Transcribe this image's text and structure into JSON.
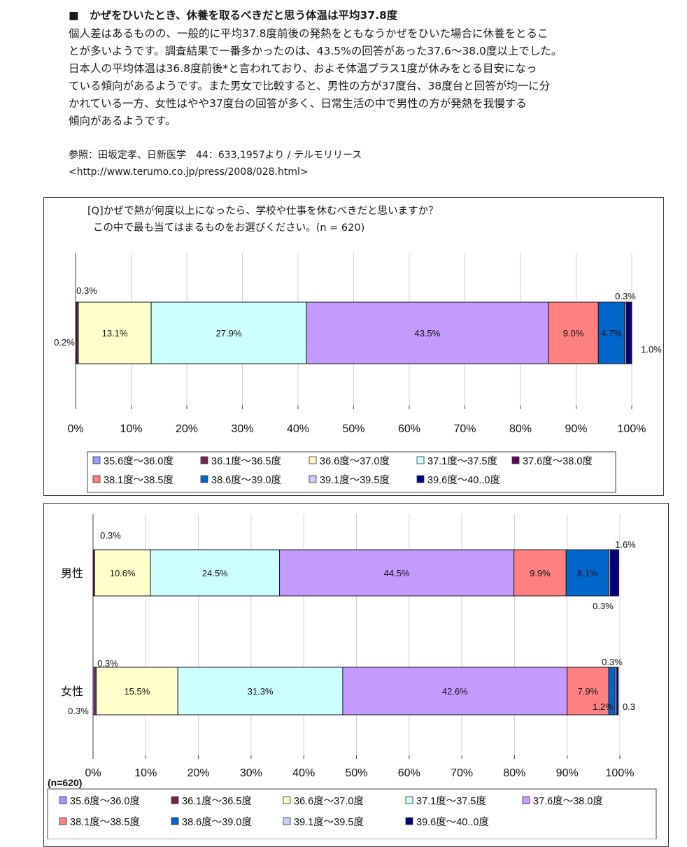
{
  "article": {
    "heading": "■　かぜをひいたとき、休養を取るべきだと思う体温は平均37.8度",
    "paragraph_lines": [
      "個人差はあるものの、一般的に平均37.8度前後の発熱をともなうかぜをひいた場合に休養をとるこ",
      "とが多いようです。調査結果で一番多かったのは、43.5%の回答があった37.6〜38.0度以上でした。",
      "日本人の平均体温は36.8度前後*と言われており、およそ体温プラス1度が休みをとる目安になっ",
      "ている傾向があるようです。また男女で比較すると、男性の方が37度台、38度台と回答が均一に分",
      "かれている一方、女性はやや37度台の回答が多く、日常生活の中で男性の方が発熱を我慢する",
      "傾向があるようです。"
    ],
    "reference_line1": "参照：田坂定孝、日新医学　44：633,1957より / テルモリリース",
    "reference_line2": "<http://www.terumo.co.jp/press/2008/028.html>"
  },
  "chart_data": [
    {
      "type": "bar",
      "orientation": "horizontal-stacked-100",
      "question_line1": "[Q]かぜで熱が何度以上になったら、学校や仕事を休むべきだと思いますか？",
      "question_line2": "この中で最も当てはまるものをお選びください。(n = 620)",
      "xlim": [
        0,
        100
      ],
      "x_ticks": [
        "0%",
        "10%",
        "20%",
        "30%",
        "40%",
        "50%",
        "60%",
        "70%",
        "80%",
        "90%",
        "100%"
      ],
      "legend_placement": "bottom",
      "legend": [
        "35.6度〜36.0度",
        "36.1度〜36.5度",
        "36.6度〜37.0度",
        "37.1度〜37.5度",
        "37.6度〜38.0度",
        "38.1度〜38.5度",
        "38.6度〜39.0度",
        "39.1度〜39.5度",
        "39.6度〜40..0度"
      ],
      "legend_colors": [
        "#9999ff",
        "#7f1f4f",
        "#ffffcc",
        "#ccffff",
        "#660066",
        "#ff8080",
        "#0066cc",
        "#ccccff",
        "#000080"
      ],
      "segment_colors": [
        "#9999ff",
        "#7f1f4f",
        "#ffffcc",
        "#ccffff",
        "#c39bff",
        "#ff8080",
        "#0066cc",
        "#ccccff",
        "#000080"
      ],
      "categories": [
        ""
      ],
      "series": [
        {
          "name": "35.6度〜36.0度",
          "values": [
            0.2
          ],
          "label": "0.2%"
        },
        {
          "name": "36.1度〜36.5度",
          "values": [
            0.3
          ],
          "label": "0.3%"
        },
        {
          "name": "36.6度〜37.0度",
          "values": [
            13.1
          ],
          "label": "13.1%"
        },
        {
          "name": "37.1度〜37.5度",
          "values": [
            27.9
          ],
          "label": "27.9%"
        },
        {
          "name": "37.6度〜38.0度",
          "values": [
            43.5
          ],
          "label": "43.5%"
        },
        {
          "name": "38.1度〜38.5度",
          "values": [
            9.0
          ],
          "label": "9.0%"
        },
        {
          "name": "38.6度〜39.0度",
          "values": [
            4.7
          ],
          "label": "4.7%"
        },
        {
          "name": "39.1度〜39.5度",
          "values": [
            0.3
          ],
          "label": "0.3%"
        },
        {
          "name": "39.6度〜40..0度",
          "values": [
            1.0
          ],
          "label": "1.0%"
        }
      ]
    },
    {
      "type": "bar",
      "orientation": "horizontal-stacked-100",
      "n_label": "(n=620)",
      "xlim": [
        0,
        100
      ],
      "x_ticks": [
        "0%",
        "10%",
        "20%",
        "30%",
        "40%",
        "50%",
        "60%",
        "70%",
        "80%",
        "90%",
        "100%"
      ],
      "legend_placement": "bottom",
      "legend": [
        "35.6度〜36.0度",
        "36.1度〜36.5度",
        "36.6度〜37.0度",
        "37.1度〜37.5度",
        "37.6度〜38.0度",
        "38.1度〜38.5度",
        "38.6度〜39.0度",
        "39.1度〜39.5度",
        "39.6度〜40..0度"
      ],
      "legend_colors": [
        "#9999ff",
        "#7f1f4f",
        "#ffffcc",
        "#ccffff",
        "#c39bff",
        "#ff8080",
        "#0066cc",
        "#ccccff",
        "#000080"
      ],
      "segment_colors": [
        "#9999ff",
        "#7f1f4f",
        "#ffffcc",
        "#ccffff",
        "#c39bff",
        "#ff8080",
        "#0066cc",
        "#ccccff",
        "#000080"
      ],
      "categories": [
        "男性",
        "女性"
      ],
      "series": [
        {
          "name": "35.6度〜36.0度",
          "values": [
            0.0,
            0.3
          ],
          "labels": [
            "",
            "0.3%"
          ]
        },
        {
          "name": "36.1度〜36.5度",
          "values": [
            0.3,
            0.3
          ],
          "labels": [
            "0.3%",
            "0.3%"
          ]
        },
        {
          "name": "36.6度〜37.0度",
          "values": [
            10.6,
            15.5
          ],
          "labels": [
            "10.6%",
            "15.5%"
          ]
        },
        {
          "name": "37.1度〜37.5度",
          "values": [
            24.5,
            31.3
          ],
          "labels": [
            "24.5%",
            "31.3%"
          ]
        },
        {
          "name": "37.6度〜38.0度",
          "values": [
            44.5,
            42.6
          ],
          "labels": [
            "44.5%",
            "42.6%"
          ]
        },
        {
          "name": "38.1度〜38.5度",
          "values": [
            9.9,
            7.9
          ],
          "labels": [
            "9.9%",
            "7.9%"
          ]
        },
        {
          "name": "38.6度〜39.0度",
          "values": [
            8.1,
            1.2
          ],
          "labels": [
            "8.1%",
            "1.2%"
          ]
        },
        {
          "name": "39.1度〜39.5度",
          "values": [
            0.3,
            0.3
          ],
          "labels": [
            "0.3%",
            "0.3%"
          ]
        },
        {
          "name": "39.6度〜40..0度",
          "values": [
            1.6,
            0.3
          ],
          "labels": [
            "1.6%",
            "0.3"
          ]
        }
      ]
    }
  ]
}
